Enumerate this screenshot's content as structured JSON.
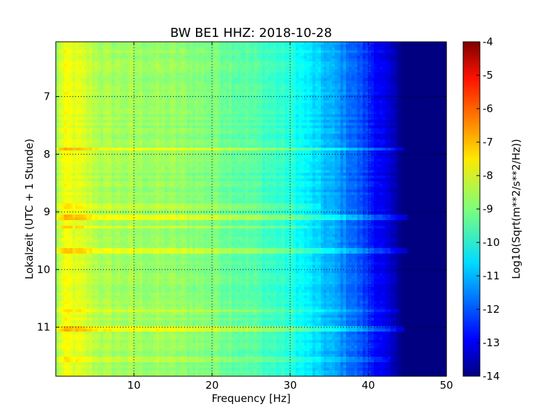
{
  "chart_data": {
    "type": "heatmap",
    "title": "BW BE1 HHZ: 2018-10-28",
    "xlabel": "Frequency [Hz]",
    "ylabel": "Lokalzeit (UTC + 1 Stunde)",
    "xlim": [
      0,
      50
    ],
    "ylim": [
      6.05,
      11.85
    ],
    "y_inverted": true,
    "x_ticks": [
      "10",
      "20",
      "30",
      "40",
      "50"
    ],
    "y_ticks": [
      "7",
      "8",
      "9",
      "10",
      "11"
    ],
    "grid": true,
    "colormap": "jet",
    "colorbar": {
      "label": "Log10(Sqrt(m**2/s**2/Hz))",
      "range": [
        -14,
        -4
      ],
      "ticks": [
        "-4",
        "-5",
        "-6",
        "-7",
        "-8",
        "-9",
        "-10",
        "-11",
        "-12",
        "-13",
        "-14"
      ]
    },
    "spectrum_profile": {
      "frequency_hz": [
        0,
        0.5,
        1.5,
        3,
        6,
        10,
        15,
        20,
        25,
        30,
        33,
        36,
        38,
        40,
        42,
        43.5,
        44.5,
        46,
        50
      ],
      "log_amplitude": [
        -9.0,
        -8.2,
        -7.9,
        -8.1,
        -8.6,
        -8.7,
        -8.8,
        -9.0,
        -9.4,
        -9.9,
        -10.6,
        -11.2,
        -11.7,
        -12.3,
        -13.0,
        -13.6,
        -14.0,
        -14.0,
        -14.0
      ]
    },
    "bright_bands": [
      {
        "hour": 7.92,
        "max_frequency_hz": 44.5,
        "boost": 0.9
      },
      {
        "hour": 8.9,
        "max_frequency_hz": 34,
        "boost": 0.4
      },
      {
        "hour": 9.1,
        "max_frequency_hz": 45,
        "boost": 0.9
      },
      {
        "hour": 9.27,
        "max_frequency_hz": 32,
        "boost": 0.4
      },
      {
        "hour": 9.68,
        "max_frequency_hz": 45,
        "boost": 0.8
      },
      {
        "hour": 10.72,
        "max_frequency_hz": 44,
        "boost": 0.6
      },
      {
        "hour": 11.02,
        "max_frequency_hz": 44.5,
        "boost": 0.8
      },
      {
        "hour": 11.56,
        "max_frequency_hz": 43,
        "boost": 0.4
      }
    ]
  }
}
